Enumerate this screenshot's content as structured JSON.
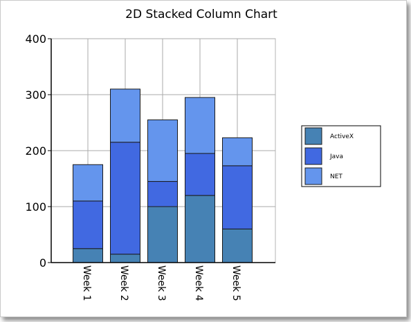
{
  "chart_data": {
    "type": "bar",
    "stacked": true,
    "title": "2D Stacked Column Chart",
    "categories": [
      "Week 1",
      "Week 2",
      "Week 3",
      "Week 4",
      "Week 5"
    ],
    "series": [
      {
        "name": "ActiveX",
        "color": "#4682B4",
        "values": [
          25,
          15,
          100,
          120,
          60
        ]
      },
      {
        "name": "Java",
        "color": "#4169E1",
        "values": [
          85,
          200,
          45,
          75,
          113
        ]
      },
      {
        "name": "NET",
        "color": "#6495ED",
        "values": [
          65,
          95,
          110,
          100,
          50
        ]
      }
    ],
    "ylim": [
      0,
      400
    ],
    "yticks": [
      "0",
      "100",
      "200",
      "300",
      "400"
    ],
    "grid": true,
    "legend_position": "right"
  }
}
